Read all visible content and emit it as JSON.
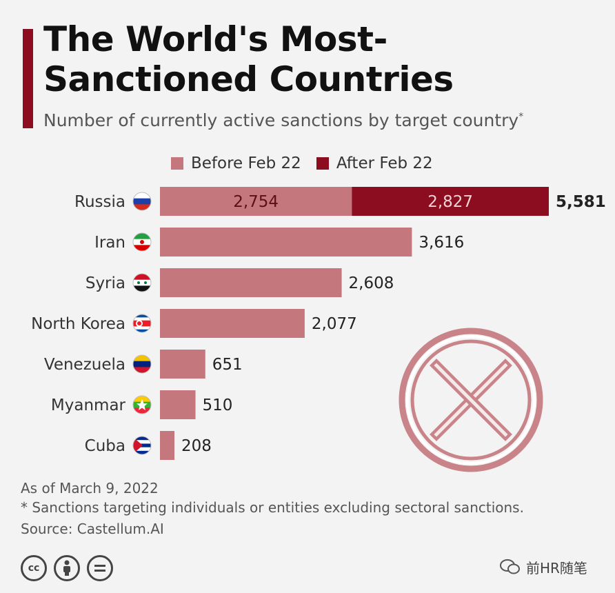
{
  "title": "The World's Most-Sanctioned Countries",
  "subtitle": "Number of currently active sanctions by target country",
  "subtitle_mark": "*",
  "legend": [
    {
      "label": "Before Feb 22",
      "color": "#c4777d"
    },
    {
      "label": "After Feb 22",
      "color": "#8b0d1f"
    }
  ],
  "chart_data": {
    "type": "bar",
    "orientation": "horizontal",
    "stacked": true,
    "categories": [
      "Russia",
      "Iran",
      "Syria",
      "North Korea",
      "Venezuela",
      "Myanmar",
      "Cuba"
    ],
    "series": [
      {
        "name": "Before Feb 22",
        "color": "#c4777d",
        "values": [
          2754,
          3616,
          2608,
          2077,
          651,
          510,
          208
        ]
      },
      {
        "name": "After Feb 22",
        "color": "#8b0d1f",
        "values": [
          2827,
          0,
          0,
          0,
          0,
          0,
          0
        ]
      }
    ],
    "segment_labels": {
      "Russia": [
        "2,754",
        "2,827"
      ]
    },
    "total_labels": [
      "5,581",
      "3,616",
      "2,608",
      "2,077",
      "651",
      "510",
      "208"
    ],
    "xlim": [
      0,
      5581
    ],
    "grid": false,
    "legend_position": "top"
  },
  "footer": {
    "date": "As of March 9, 2022",
    "note": "* Sanctions targeting individuals or entities excluding sectoral sanctions.",
    "source": "Source: Castellum.AI"
  },
  "license_icons": [
    "cc",
    "by",
    "nd"
  ],
  "watermark": "前HR随笔",
  "overlay": "x-circle-stamp"
}
